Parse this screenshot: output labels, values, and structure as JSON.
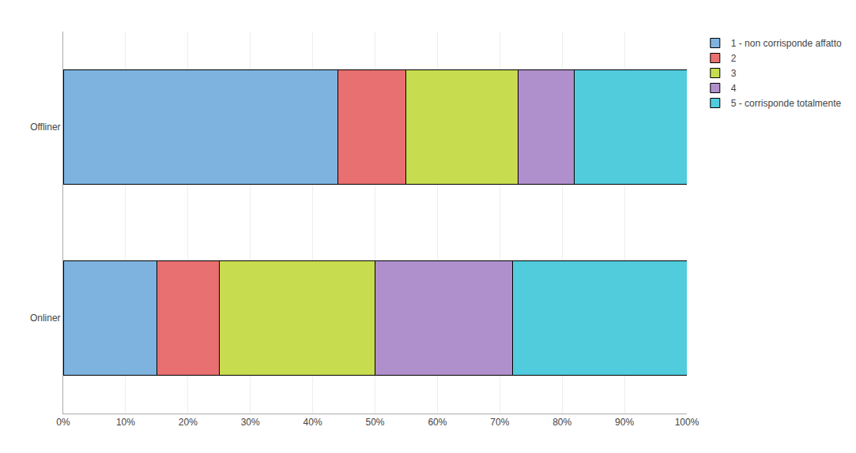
{
  "chart_data": {
    "type": "bar",
    "orientation": "horizontal",
    "stacked": true,
    "categories": [
      "Offliner",
      "Onliner"
    ],
    "series": [
      {
        "name": "1 - non corrisponde affatto",
        "values": [
          44,
          15
        ],
        "color": "#7EB3E0"
      },
      {
        "name": "2",
        "values": [
          11,
          10
        ],
        "color": "#E87070"
      },
      {
        "name": "3",
        "values": [
          18,
          25
        ],
        "color": "#C8DC50"
      },
      {
        "name": "4",
        "values": [
          9,
          22
        ],
        "color": "#B090CC"
      },
      {
        "name": "5 - corrisponde totalmente",
        "values": [
          18,
          28
        ],
        "color": "#50CCDD"
      }
    ],
    "xlim": [
      0,
      100
    ],
    "xticks": [
      {
        "value": 0,
        "label": "0%"
      },
      {
        "value": 10,
        "label": "10%"
      },
      {
        "value": 20,
        "label": "20%"
      },
      {
        "value": 30,
        "label": "30%"
      },
      {
        "value": 40,
        "label": "40%"
      },
      {
        "value": 50,
        "label": "50%"
      },
      {
        "value": 60,
        "label": "60%"
      },
      {
        "value": 70,
        "label": "70%"
      },
      {
        "value": 80,
        "label": "80%"
      },
      {
        "value": 90,
        "label": "90%"
      },
      {
        "value": 100,
        "label": "100%"
      }
    ],
    "grid": true,
    "legend": "upper right"
  }
}
